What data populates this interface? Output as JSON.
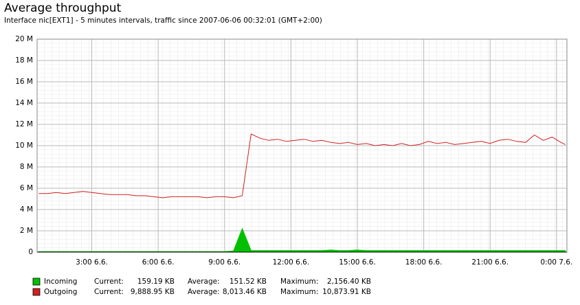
{
  "chart_data": {
    "type": "line",
    "title": "Average throughput",
    "subtitle": "Interface nic[EXT1] - 5 minutes intervals, traffic since 2007-06-06 00:32:01 (GMT+2:00)",
    "x": [
      0.6,
      1,
      1.4,
      1.8,
      2.2,
      2.6,
      3,
      3.4,
      3.8,
      4.2,
      4.6,
      5,
      5.4,
      5.8,
      6.2,
      6.6,
      7,
      7.4,
      7.8,
      8.2,
      8.6,
      9,
      9.4,
      9.8,
      10.2,
      10.6,
      11,
      11.4,
      11.8,
      12.2,
      12.6,
      13,
      13.4,
      13.8,
      14.2,
      14.6,
      15,
      15.4,
      15.8,
      16.2,
      16.6,
      17,
      17.4,
      17.8,
      18.2,
      18.6,
      19,
      19.4,
      19.8,
      20.2,
      20.6,
      21,
      21.4,
      21.8,
      22.2,
      22.6,
      23,
      23.4,
      23.8,
      24.2,
      24.4
    ],
    "series": [
      {
        "name": "Incoming",
        "color": "#00c000",
        "fill": true,
        "current": "159.19 KB",
        "average": "151.52 KB",
        "maximum": "2,156.40 KB",
        "values": [
          0.05,
          0.05,
          0.05,
          0.05,
          0.05,
          0.05,
          0.05,
          0.05,
          0.05,
          0.05,
          0.05,
          0.05,
          0.05,
          0.05,
          0.05,
          0.05,
          0.05,
          0.05,
          0.05,
          0.05,
          0.05,
          0.05,
          0.1,
          2.2,
          0.15,
          0.15,
          0.15,
          0.15,
          0.15,
          0.15,
          0.15,
          0.15,
          0.15,
          0.2,
          0.15,
          0.15,
          0.2,
          0.15,
          0.15,
          0.15,
          0.15,
          0.15,
          0.15,
          0.15,
          0.15,
          0.15,
          0.15,
          0.15,
          0.15,
          0.15,
          0.15,
          0.15,
          0.15,
          0.15,
          0.15,
          0.15,
          0.15,
          0.15,
          0.15,
          0.15,
          0.15
        ]
      },
      {
        "name": "Outgoing",
        "color": "#d02020",
        "fill": false,
        "current": "9,888.95 KB",
        "average": "8,013.46 KB",
        "maximum": "10,873.91 KB",
        "values": [
          5.5,
          5.5,
          5.6,
          5.5,
          5.6,
          5.7,
          5.6,
          5.5,
          5.4,
          5.4,
          5.4,
          5.3,
          5.3,
          5.2,
          5.1,
          5.2,
          5.2,
          5.2,
          5.2,
          5.1,
          5.2,
          5.2,
          5.1,
          5.3,
          11.1,
          10.7,
          10.5,
          10.6,
          10.4,
          10.5,
          10.6,
          10.4,
          10.5,
          10.3,
          10.2,
          10.3,
          10.1,
          10.2,
          10.0,
          10.1,
          10.0,
          10.2,
          10.0,
          10.1,
          10.4,
          10.2,
          10.3,
          10.1,
          10.2,
          10.3,
          10.4,
          10.2,
          10.5,
          10.6,
          10.4,
          10.3,
          11.0,
          10.5,
          10.8,
          10.3,
          10.1
        ]
      }
    ],
    "legend_labels": {
      "current": "Current:",
      "average": "Average:",
      "maximum": "Maximum:"
    },
    "xlim": [
      0.53,
      24.47
    ],
    "xticks": [
      {
        "value": 3,
        "label": "3:00 6.6."
      },
      {
        "value": 6,
        "label": "6:00 6.6."
      },
      {
        "value": 9,
        "label": "9:00 6.6."
      },
      {
        "value": 12,
        "label": "12:00 6.6."
      },
      {
        "value": 15,
        "label": "15:00 6.6."
      },
      {
        "value": 18,
        "label": "18:00 6.6."
      },
      {
        "value": 21,
        "label": "21:00 6.6."
      },
      {
        "value": 24,
        "label": "0:00 7.6."
      }
    ],
    "ylim": [
      0,
      20
    ],
    "yticks": [
      0,
      {
        "value": 2,
        "label": "2 M"
      },
      {
        "value": 4,
        "label": "4 M"
      },
      {
        "value": 6,
        "label": "6 M"
      },
      {
        "value": 8,
        "label": "8 M"
      },
      {
        "value": 10,
        "label": "10 M"
      },
      {
        "value": 12,
        "label": "12 M"
      },
      {
        "value": 14,
        "label": "14 M"
      },
      {
        "value": 16,
        "label": "16 M"
      },
      {
        "value": 18,
        "label": "18 M"
      },
      {
        "value": 20,
        "label": "20 M"
      }
    ],
    "grid": true
  }
}
